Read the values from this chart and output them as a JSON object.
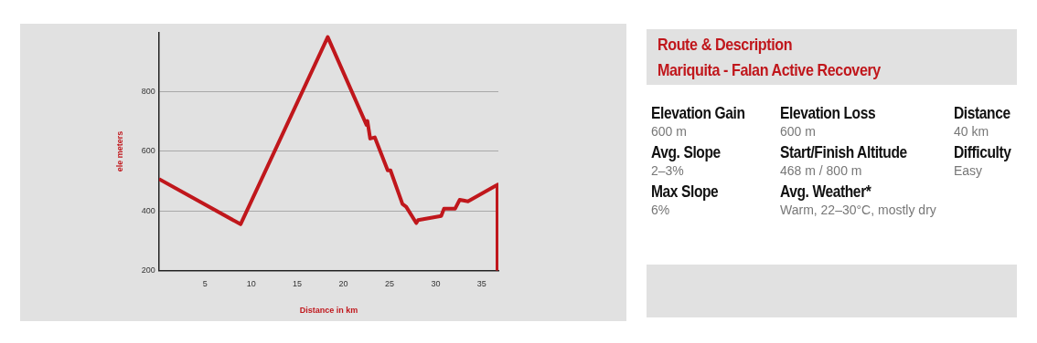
{
  "chart_data": [
    {
      "type": "line",
      "xlabel": "Distance in km",
      "ylabel": "ele meters",
      "x": [
        0,
        8.85,
        18.3,
        22.5,
        22.6,
        22.9,
        23.4,
        24.8,
        25.1,
        26.4,
        26.8,
        27.9,
        28.1,
        30.6,
        30.9,
        32.1,
        32.6,
        33.5,
        36.7,
        36.7
      ],
      "series": [
        {
          "color": "#c0171c",
          "values": [
            507,
            355,
            984,
            689,
            702,
            643,
            647,
            536,
            536,
            423,
            414,
            359,
            369,
            383,
            407,
            407,
            437,
            432,
            488,
            200
          ]
        }
      ],
      "xlim": [
        0,
        36.8
      ],
      "xticks": [
        5,
        10,
        15,
        20,
        25,
        30,
        35
      ],
      "ylim": [
        200,
        1000
      ],
      "yticks": [
        200,
        400,
        600,
        800
      ],
      "grid": "y",
      "marker": "none"
    },
    {
      "type": "other",
      "title": "Route & Description",
      "subtitle": "Mariquita - Falan Active Recovery",
      "annotations": [
        "Elevation Gain",
        "600 m",
        "Elevation Loss",
        "600 m",
        "Distance",
        "40 km",
        "Avg. Slope",
        "2–3%",
        "Start/Finish Altitude",
        "468 m / 800 m",
        "Difficulty",
        "Easy",
        "Max Slope",
        "6%",
        "Avg. Weather*",
        "Warm, 22–30°C, mostly dry"
      ]
    }
  ]
}
